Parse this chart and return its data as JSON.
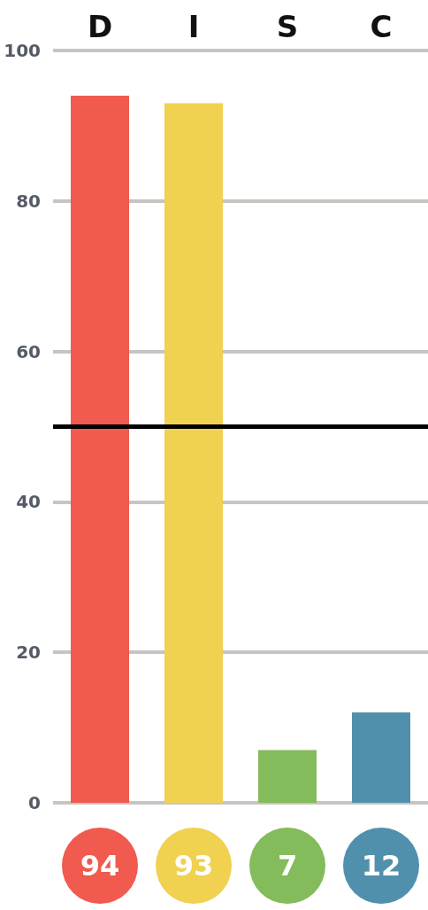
{
  "chart_data": {
    "type": "bar",
    "categories": [
      "D",
      "I",
      "S",
      "C"
    ],
    "values": [
      94,
      93,
      7,
      12
    ],
    "colors": [
      "#f05a4f",
      "#f0d150",
      "#84bb5b",
      "#5090ad"
    ],
    "ylim": [
      0,
      100
    ],
    "yticks": [
      0,
      20,
      40,
      60,
      80,
      100
    ],
    "grid": "y",
    "data_labels": true,
    "ref_lines": [
      {
        "axis": "y",
        "value": 50,
        "color": "#000000"
      }
    ]
  }
}
